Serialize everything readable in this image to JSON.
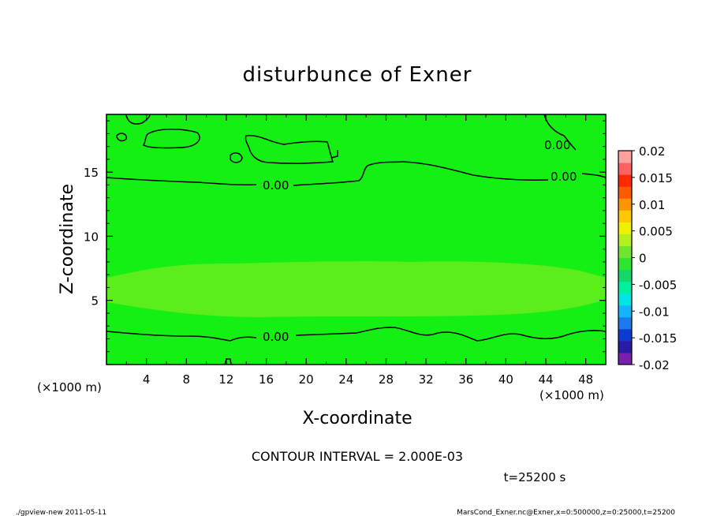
{
  "chart_data": {
    "type": "heatmap",
    "title": "disturbunce of Exner",
    "xlabel": "X-coordinate",
    "ylabel": "Z-coordinate",
    "x_unit_left": "(×1000 m)",
    "x_unit_right": "(×1000 m)",
    "xlim": [
      0,
      50
    ],
    "ylim": [
      0,
      19.5
    ],
    "x_ticks": [
      4,
      8,
      12,
      16,
      20,
      24,
      28,
      32,
      36,
      40,
      44,
      48
    ],
    "y_ticks": [
      5,
      10,
      15
    ],
    "colorbar": {
      "ticks": [
        "0.02",
        "0.015",
        "0.01",
        "0.005",
        "0",
        "-0.005",
        "-0.01",
        "-0.015",
        "-0.02"
      ],
      "range": [
        -0.02,
        0.02
      ],
      "colors": [
        "#7a1fb0",
        "#2a1aa8",
        "#0f3ad0",
        "#1e78f0",
        "#14b4ff",
        "#00e6e6",
        "#00f0a0",
        "#14d86a",
        "#2ee62e",
        "#6ee62e",
        "#b4f01e",
        "#f0f000",
        "#ffc800",
        "#ff9600",
        "#ff5a00",
        "#ff2800",
        "#ff6060",
        "#ffa0a0"
      ]
    },
    "field_colors": {
      "base": "#14f014",
      "band": "#5cee1c"
    },
    "contour_label": "0.00",
    "contour_interval_text": "CONTOUR INTERVAL = 2.000E-03",
    "time_text": "t=25200 s"
  },
  "footer": {
    "left": "./gpview-new 2011-05-11",
    "right": "MarsCond_Exner.nc@Exner,x=0:500000,z=0:25000,t=25200"
  }
}
